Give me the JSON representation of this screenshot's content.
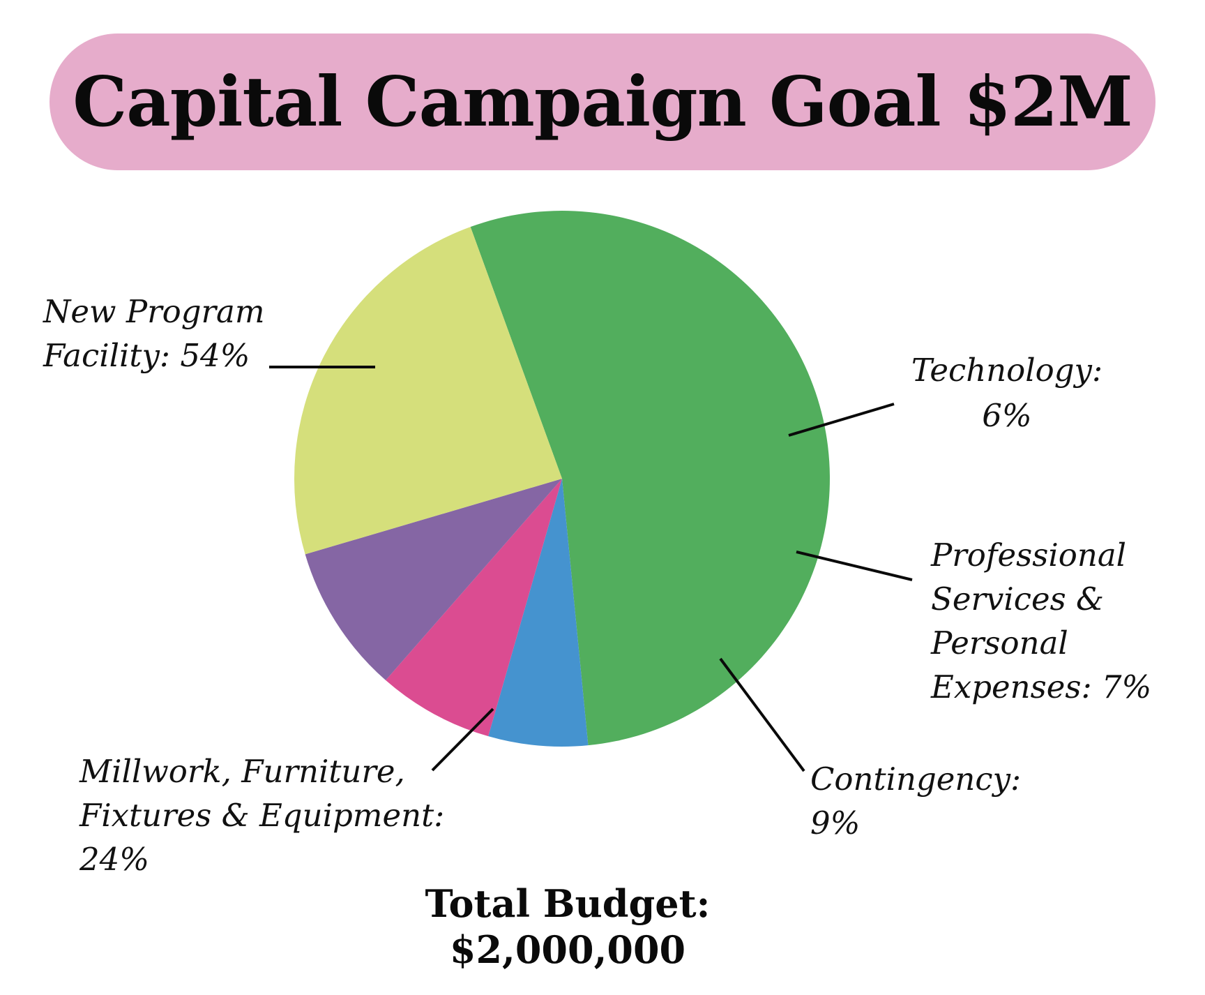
{
  "title": "Capital Campaign Goal $2M",
  "total": {
    "label": "Total Budget:",
    "value": "$2,000,000"
  },
  "chart_data": {
    "type": "pie",
    "title": "Capital Campaign Goal $2M",
    "slices": [
      {
        "name": "New Program Facility",
        "value": 54,
        "color": "#52ae5d",
        "label_lines": [
          "New Program",
          "Facility: 54%"
        ]
      },
      {
        "name": "Technology",
        "value": 6,
        "color": "#4593cf",
        "label_lines": [
          "Technology:",
          "6%"
        ]
      },
      {
        "name": "Professional Services & Personal Expenses",
        "value": 7,
        "color": "#db4c91",
        "label_lines": [
          "Professional",
          "Services &",
          "Personal",
          "Expenses: 7%"
        ]
      },
      {
        "name": "Contingency",
        "value": 9,
        "color": "#8566a4",
        "label_lines": [
          "Contingency:",
          "9%"
        ]
      },
      {
        "name": "Millwork, Furniture, Fixtures & Equipment",
        "value": 24,
        "color": "#d5df7b",
        "label_lines": [
          "Millwork, Furniture,",
          "Fixtures & Equipment:",
          "24%"
        ]
      }
    ],
    "unit": "%",
    "legend": "none",
    "labels": "callout-with-leader-lines"
  }
}
